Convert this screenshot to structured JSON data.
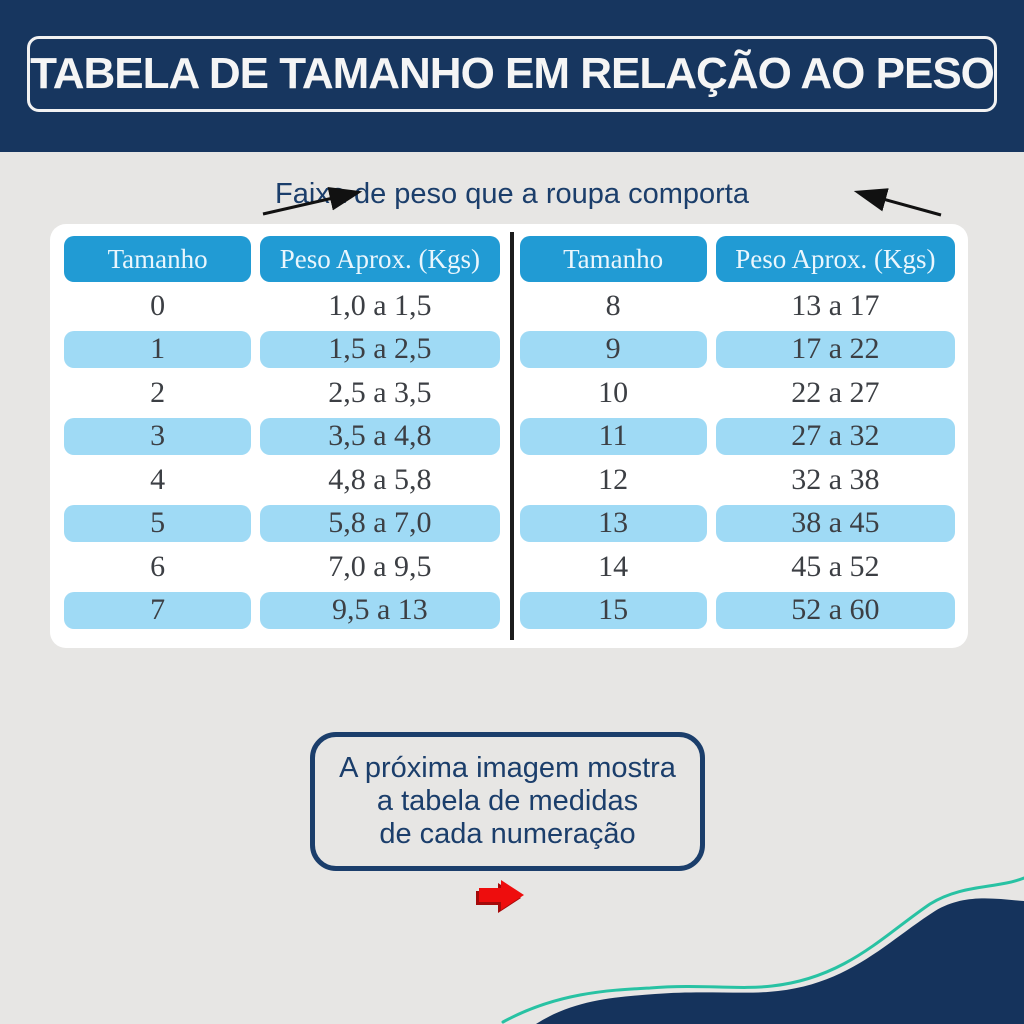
{
  "banner": {
    "title": "TABELA DE TAMANHO EM RELAÇÃO AO PESO"
  },
  "subtitle": {
    "text": "Faixa de peso que a roupa comporta"
  },
  "chart_data": {
    "type": "table",
    "title": "TABELA DE TAMANHO EM RELAÇÃO AO PESO",
    "annotation": "Faixa de peso que a roupa comporta",
    "columns": [
      "Tamanho",
      "Peso Aprox. (Kgs)"
    ],
    "rows": [
      [
        "0",
        "1,0 a 1,5"
      ],
      [
        "1",
        "1,5 a 2,5"
      ],
      [
        "2",
        "2,5 a 3,5"
      ],
      [
        "3",
        "3,5 a 4,8"
      ],
      [
        "4",
        "4,8 a 5,8"
      ],
      [
        "5",
        "5,8 a 7,0"
      ],
      [
        "6",
        "7,0 a 9,5"
      ],
      [
        "7",
        "9,5 a 13"
      ],
      [
        "8",
        "13 a 17"
      ],
      [
        "9",
        "17 a 22"
      ],
      [
        "10",
        "22 a 27"
      ],
      [
        "11",
        "27 a 32"
      ],
      [
        "12",
        "32 a 38"
      ],
      [
        "13",
        "38 a 45"
      ],
      [
        "14",
        "45 a 52"
      ],
      [
        "15",
        "52 a 60"
      ]
    ],
    "layout": "two side-by-side tables split after size 7, separated by a vertical black line",
    "zebra_striping": "odd rows highlighted light blue"
  },
  "note_box": {
    "lines": [
      "A próxima imagem mostra",
      "a tabela de medidas",
      "de cada numeração"
    ]
  },
  "icons": {
    "pointer_arrows": "black-arrows-pointing-at-subtitle",
    "next_arrow": "red-arrow-right",
    "wave": "navy-wave-with-teal-outline"
  },
  "colors": {
    "banner_navy": "#17365f",
    "wave_navy": "#15335c",
    "text_navy": "#1b3e6b",
    "header_blue": "#219bd4",
    "row_blue": "#9fdaf5",
    "page_bg": "#e7e6e4",
    "card_bg": "#ffffff",
    "table_text": "#3c3f44",
    "red_arrow": "#ee0d0d",
    "teal_line": "#28c2a3",
    "divider_black": "#1c1c1c"
  }
}
